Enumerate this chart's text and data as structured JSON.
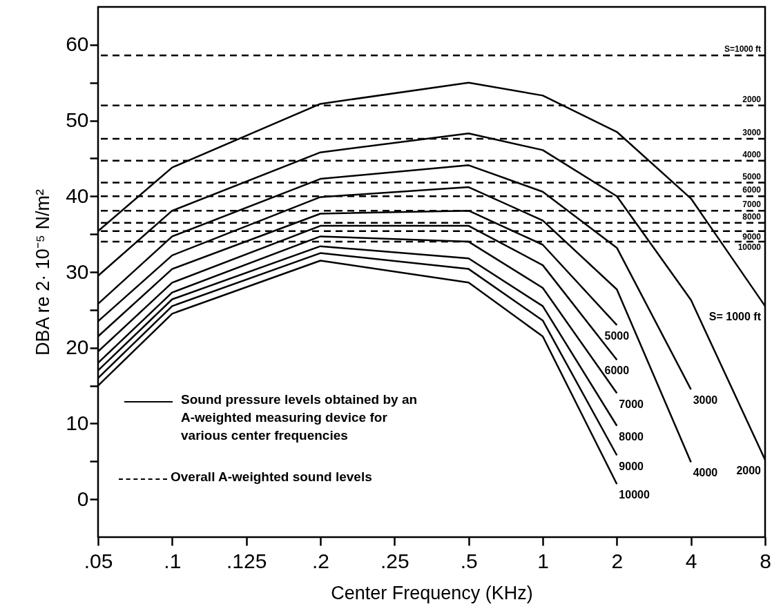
{
  "chart_data": {
    "type": "line",
    "xlabel": "Center Frequency (KHz)",
    "ylabel": "DBA re 2· 10⁻⁵ N/m²",
    "categories": [
      ".05",
      ".1",
      ".125",
      ".2",
      ".25",
      ".5",
      "1",
      "2",
      "4",
      "8"
    ],
    "series": [
      {
        "name": "S= 1000 ft",
        "color": "#000000",
        "values": [
          35.4,
          43.8,
          null,
          52.2,
          null,
          55,
          53.3,
          48.5,
          39.7,
          25.5
        ]
      },
      {
        "name": "2000",
        "color": "#000000",
        "values": [
          29.5,
          38.1,
          null,
          45.8,
          null,
          48.3,
          46.1,
          40,
          26.3,
          5.2
        ]
      },
      {
        "name": "3000",
        "color": "#000000",
        "values": [
          25.8,
          34.7,
          null,
          42.3,
          null,
          44.1,
          40.6,
          33.2,
          14.5,
          null
        ]
      },
      {
        "name": "4000",
        "color": "#000000",
        "values": [
          23.5,
          32.2,
          null,
          39.9,
          null,
          41.2,
          36.8,
          27.7,
          4.9,
          null
        ]
      },
      {
        "name": "5000",
        "color": "#000000",
        "values": [
          21.5,
          30.4,
          null,
          37.7,
          null,
          38.1,
          33.6,
          23,
          null,
          null
        ]
      },
      {
        "name": "6000",
        "color": "#000000",
        "values": [
          19.5,
          28.6,
          null,
          36.1,
          null,
          36.1,
          30.9,
          18.4,
          null,
          null
        ]
      },
      {
        "name": "7000",
        "color": "#000000",
        "values": [
          18,
          27.3,
          null,
          34.7,
          null,
          34,
          27.9,
          14,
          null,
          null
        ]
      },
      {
        "name": "8000",
        "color": "#000000",
        "values": [
          17,
          26.4,
          null,
          33.4,
          null,
          31.8,
          25.5,
          9.7,
          null,
          null
        ]
      },
      {
        "name": "9000",
        "color": "#000000",
        "values": [
          16,
          25.5,
          null,
          32.5,
          null,
          30.4,
          23.6,
          5.8,
          null,
          null
        ]
      },
      {
        "name": "10000",
        "color": "#000000",
        "values": [
          15,
          24.5,
          null,
          31.5,
          null,
          28.6,
          21.5,
          2,
          null,
          null
        ]
      }
    ],
    "ref_lines": [
      {
        "axis": "y",
        "value": 58.6,
        "color": "#000000",
        "line_style": "dashed"
      },
      {
        "axis": "y",
        "value": 52,
        "color": "#000000",
        "line_style": "dashed"
      },
      {
        "axis": "y",
        "value": 47.6,
        "color": "#000000",
        "line_style": "dashed"
      },
      {
        "axis": "y",
        "value": 44.7,
        "color": "#000000",
        "line_style": "dashed"
      },
      {
        "axis": "y",
        "value": 41.8,
        "color": "#000000",
        "line_style": "dashed"
      },
      {
        "axis": "y",
        "value": 40,
        "color": "#000000",
        "line_style": "dashed"
      },
      {
        "axis": "y",
        "value": 38.1,
        "color": "#000000",
        "line_style": "dashed"
      },
      {
        "axis": "y",
        "value": 36.5,
        "color": "#000000",
        "line_style": "dashed"
      },
      {
        "axis": "y",
        "value": 35.4,
        "color": "#000000",
        "line_style": "dashed"
      },
      {
        "axis": "y",
        "value": 34,
        "color": "#000000",
        "line_style": "dashed"
      }
    ],
    "annotations": [
      "Sound pressure levels obtained by an A-weighted measuring device for various center frequencies",
      "Overall A-weighted sound levels",
      {
        "text": "S=1000 ft",
        "y": 58.6
      },
      {
        "text": "2000",
        "y": 52
      },
      {
        "text": "3000",
        "y": 47.6
      },
      {
        "text": "4000",
        "y": 44.7
      },
      {
        "text": "5000",
        "y": 41.8
      },
      {
        "text": "6000",
        "y": 40
      },
      {
        "text": "7000",
        "y": 38.1
      },
      {
        "text": "8000",
        "y": 36.5
      },
      {
        "text": "9000",
        "y": 35.4
      },
      {
        "text": "10000",
        "y": 34
      }
    ],
    "ylim": [
      -5,
      65
    ],
    "yticks": [
      0,
      {
        "value": 5,
        "label": null
      },
      10,
      {
        "value": 15,
        "label": null
      },
      20,
      {
        "value": 25,
        "label": null
      },
      30,
      {
        "value": 35,
        "label": null
      },
      40,
      {
        "value": 45,
        "label": null
      },
      50,
      {
        "value": 55,
        "label": null
      },
      60
    ],
    "line_style": "solid",
    "grid": false
  }
}
